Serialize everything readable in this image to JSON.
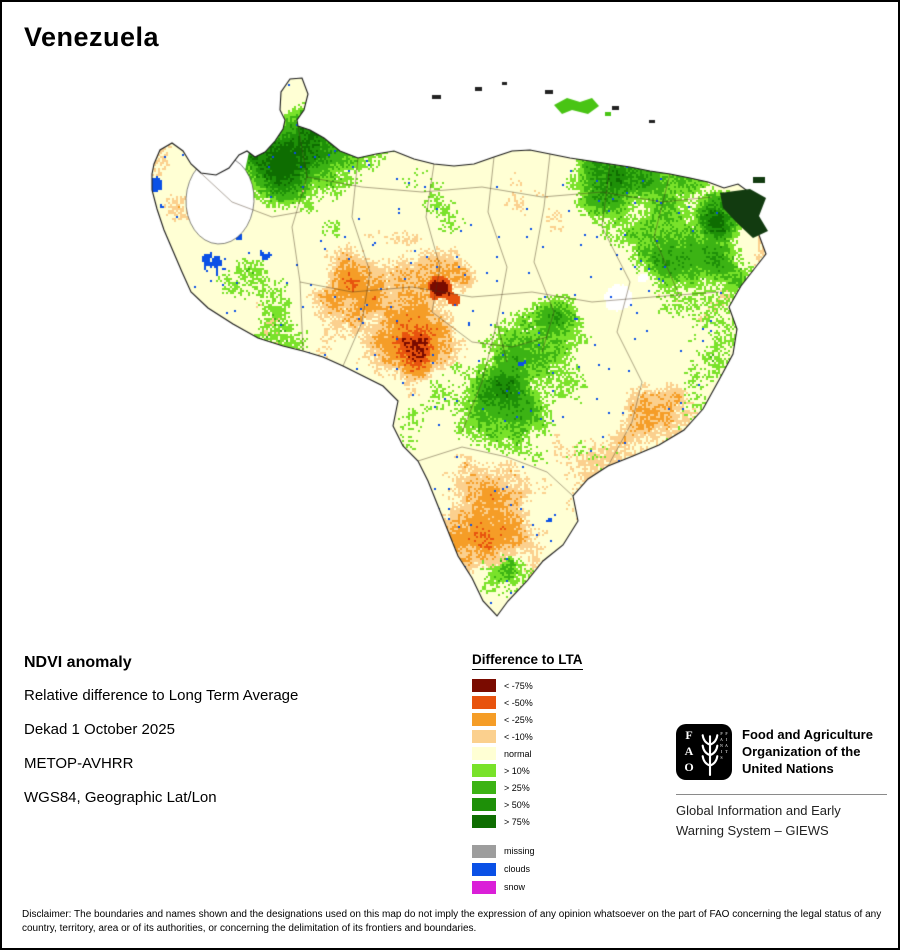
{
  "title": "Venezuela",
  "info": {
    "heading": "NDVI anomaly",
    "lines": [
      "Relative difference to Long Term Average",
      "Dekad 1 October 2025",
      "METOP-AVHRR",
      "WGS84, Geographic Lat/Lon"
    ]
  },
  "legend": {
    "title": "Difference to LTA",
    "classes": [
      {
        "label": "< -75%",
        "color": "#7a0b00"
      },
      {
        "label": "< -50%",
        "color": "#e8530e"
      },
      {
        "label": "< -25%",
        "color": "#f59d27"
      },
      {
        "label": "< -10%",
        "color": "#fbd08e"
      },
      {
        "label": "normal",
        "color": "#ffffd4"
      },
      {
        "label": "> 10%",
        "color": "#79e22a"
      },
      {
        "label": "> 25%",
        "color": "#3cb314"
      },
      {
        "label": "> 50%",
        "color": "#1e9008"
      },
      {
        "label": "> 75%",
        "color": "#0e6d01"
      }
    ],
    "extra": [
      {
        "label": "missing",
        "color": "#9d9d9d"
      },
      {
        "label": "clouds",
        "color": "#0a50e6"
      },
      {
        "label": "snow",
        "color": "#da1fd8"
      }
    ]
  },
  "branding": {
    "logo_text": "FAO",
    "logo_motto": "FIAT PANIS",
    "org_lines": [
      "Food and Agriculture",
      "Organization of the",
      "United Nations"
    ],
    "giews_lines": [
      "Global Information and Early",
      "Warning System – GIEWS"
    ]
  },
  "disclaimer": "Disclaimer: The boundaries and names shown and the designations used on this map do not imply the expression of any opinion whatsoever on the part of FAO concerning the legal status of any country, territory, area or of its authorities, or concerning the delimitation of its frontiers and boundaries."
}
